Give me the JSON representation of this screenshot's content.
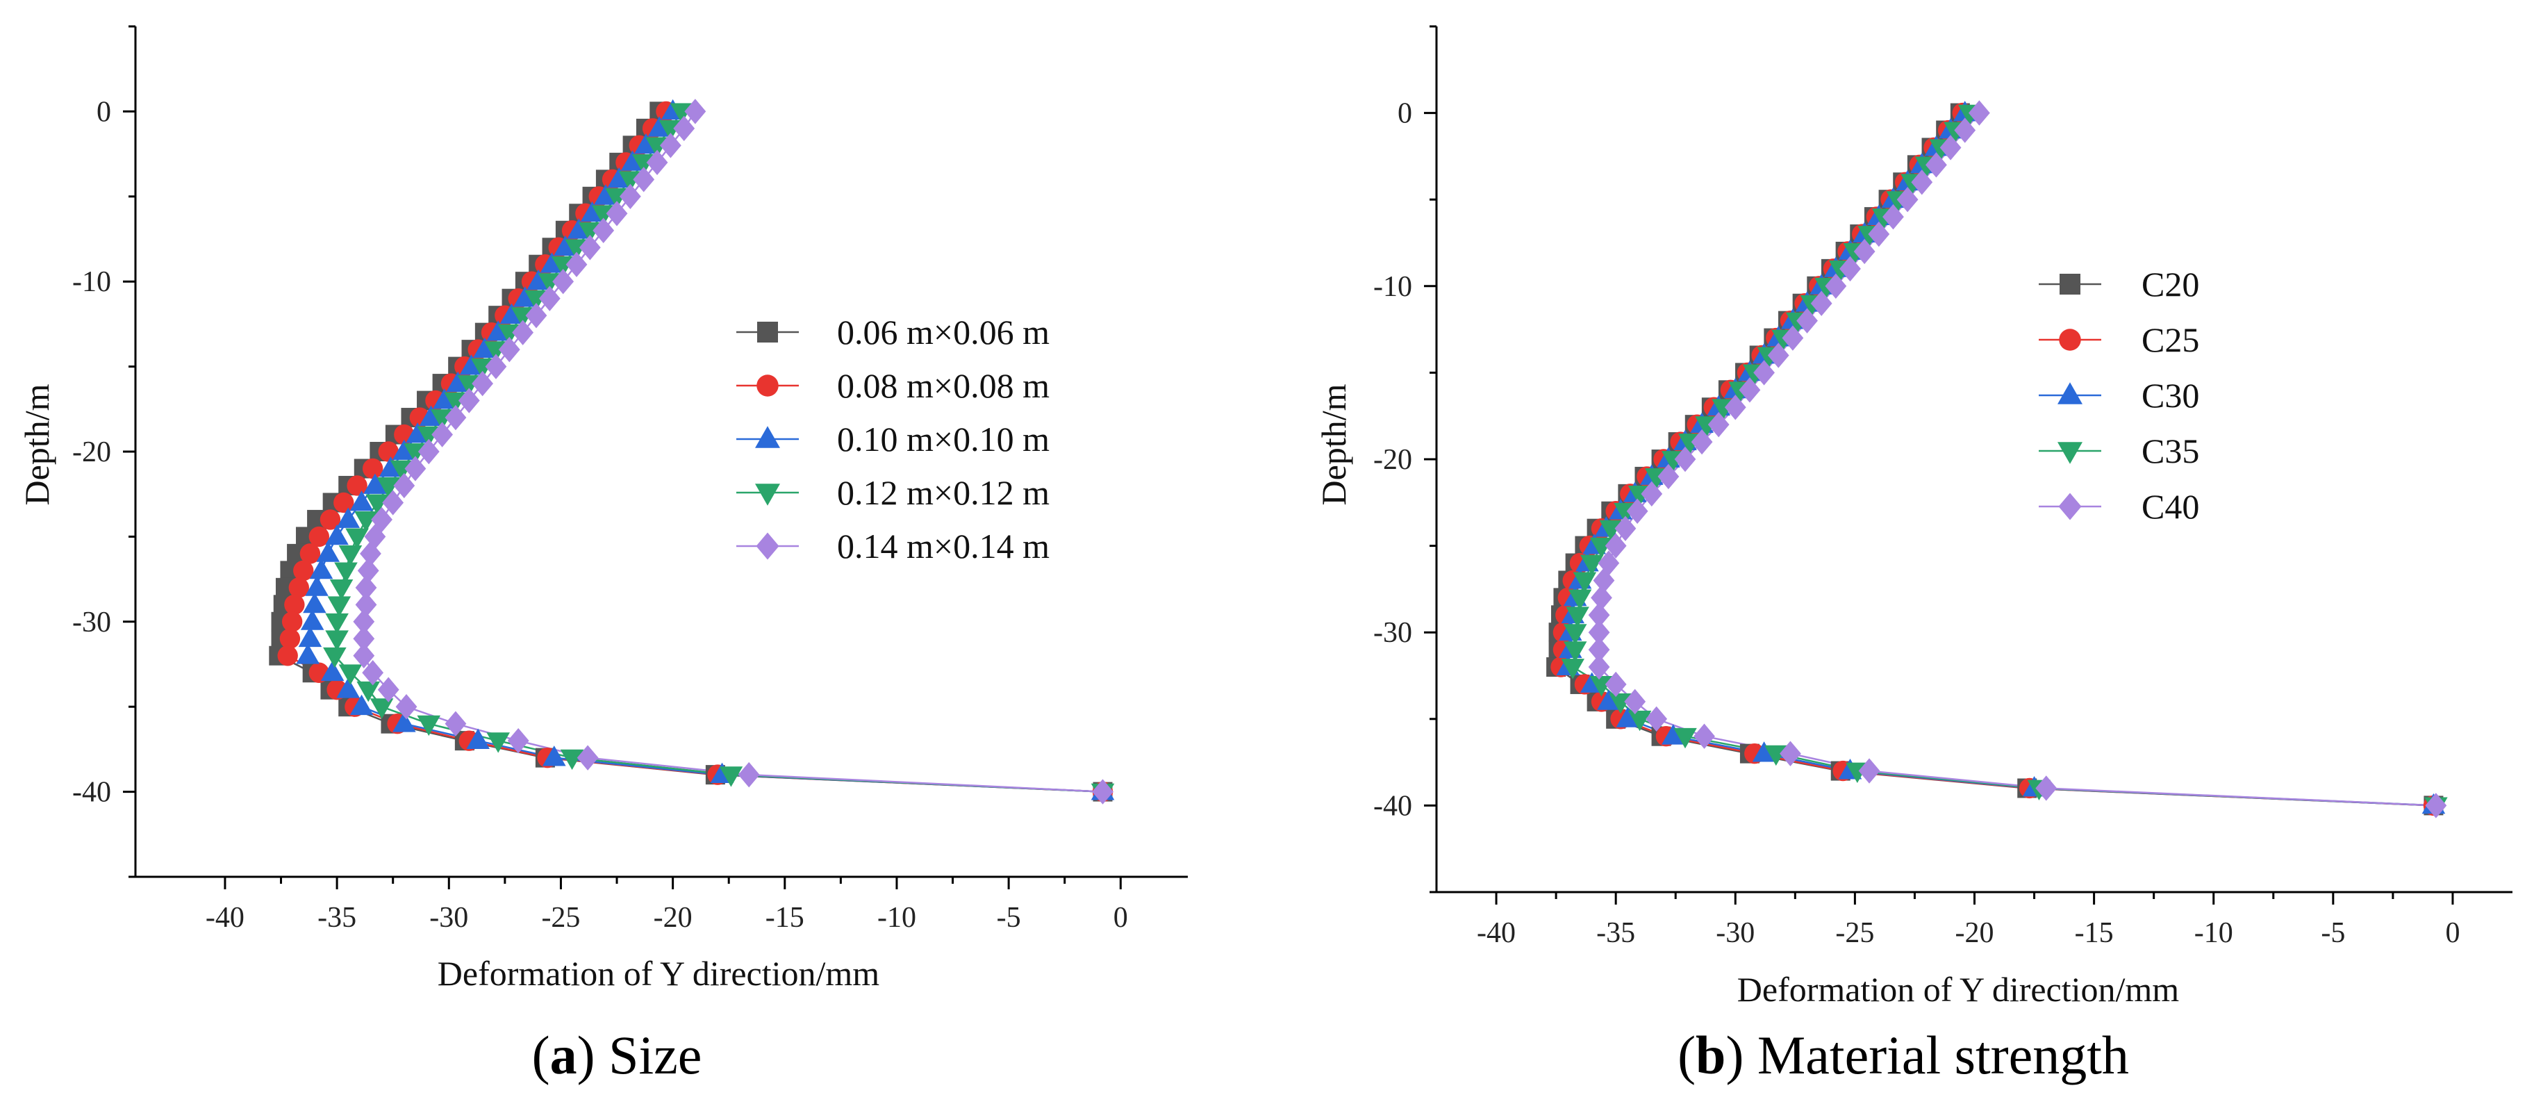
{
  "figure": {
    "panels": [
      {
        "caption_letter": "a",
        "caption_text": "Size"
      },
      {
        "caption_letter": "b",
        "caption_text": "Material strength"
      }
    ]
  },
  "chart_data": [
    {
      "type": "line",
      "xlabel": "Deformation of Y direction/mm",
      "ylabel": "Depth/m",
      "xlim": [
        -44,
        3
      ],
      "ylim": [
        -45,
        5
      ],
      "xticks": [
        -40,
        -35,
        -30,
        -25,
        -20,
        -15,
        -10,
        -5,
        0
      ],
      "yticks": [
        0,
        -10,
        -20,
        -30,
        -40
      ],
      "grid": false,
      "legend_position": "right",
      "depth": [
        0,
        -1,
        -2,
        -3,
        -4,
        -5,
        -6,
        -7,
        -8,
        -9,
        -10,
        -11,
        -12,
        -13,
        -14,
        -15,
        -16,
        -17,
        -18,
        -19,
        -20,
        -21,
        -22,
        -23,
        -24,
        -25,
        -26,
        -27,
        -28,
        -29,
        -30,
        -31,
        -32,
        -33,
        -34,
        -35,
        -36,
        -37,
        -38,
        -39,
        -40
      ],
      "series": [
        {
          "name": "0.06 m×0.06 m",
          "color": "#555555",
          "marker": "square",
          "values": [
            -20.6,
            -21.2,
            -21.8,
            -22.4,
            -23.0,
            -23.6,
            -24.2,
            -24.8,
            -25.4,
            -26.0,
            -26.6,
            -27.2,
            -27.8,
            -28.4,
            -29.0,
            -29.6,
            -30.3,
            -31.0,
            -31.7,
            -32.4,
            -33.1,
            -33.8,
            -34.5,
            -35.2,
            -35.9,
            -36.4,
            -36.8,
            -37.1,
            -37.3,
            -37.4,
            -37.5,
            -37.5,
            -37.6,
            -36.1,
            -35.3,
            -34.5,
            -32.6,
            -29.3,
            -25.7,
            -18.1,
            -0.8
          ]
        },
        {
          "name": "0.08 m×0.08 m",
          "color": "#e8342f",
          "marker": "circle",
          "values": [
            -20.3,
            -20.9,
            -21.5,
            -22.1,
            -22.7,
            -23.3,
            -23.9,
            -24.5,
            -25.1,
            -25.7,
            -26.3,
            -26.9,
            -27.5,
            -28.1,
            -28.7,
            -29.3,
            -29.9,
            -30.6,
            -31.3,
            -32.0,
            -32.7,
            -33.4,
            -34.1,
            -34.7,
            -35.3,
            -35.8,
            -36.2,
            -36.5,
            -36.7,
            -36.9,
            -37.0,
            -37.1,
            -37.2,
            -35.8,
            -35.0,
            -34.2,
            -32.3,
            -29.1,
            -25.6,
            -18.0,
            -0.8
          ]
        },
        {
          "name": "0.10 m×0.10 m",
          "color": "#2a6ad9",
          "marker": "triangle-up",
          "values": [
            -20.0,
            -20.6,
            -21.2,
            -21.8,
            -22.4,
            -23.0,
            -23.6,
            -24.2,
            -24.8,
            -25.4,
            -26.0,
            -26.6,
            -27.2,
            -27.8,
            -28.4,
            -29.0,
            -29.6,
            -30.2,
            -30.8,
            -31.4,
            -32.0,
            -32.6,
            -33.3,
            -33.9,
            -34.5,
            -35.0,
            -35.4,
            -35.7,
            -35.9,
            -36.0,
            -36.1,
            -36.2,
            -36.3,
            -35.2,
            -34.5,
            -33.9,
            -32.0,
            -28.7,
            -25.3,
            -17.8,
            -0.8
          ]
        },
        {
          "name": "0.12 m×0.12 m",
          "color": "#2aa56a",
          "marker": "triangle-down",
          "values": [
            -19.6,
            -20.1,
            -20.7,
            -21.3,
            -21.9,
            -22.5,
            -23.1,
            -23.7,
            -24.3,
            -24.9,
            -25.5,
            -26.1,
            -26.7,
            -27.3,
            -27.9,
            -28.5,
            -29.1,
            -29.7,
            -30.3,
            -30.9,
            -31.5,
            -32.1,
            -32.7,
            -33.2,
            -33.7,
            -34.1,
            -34.4,
            -34.6,
            -34.8,
            -34.9,
            -35.0,
            -35.0,
            -35.1,
            -34.4,
            -33.6,
            -33.0,
            -30.9,
            -27.8,
            -24.5,
            -17.4,
            -0.8
          ]
        },
        {
          "name": "0.14 m×0.14 m",
          "color": "#a884e0",
          "marker": "diamond",
          "values": [
            -19.0,
            -19.5,
            -20.1,
            -20.7,
            -21.3,
            -21.9,
            -22.5,
            -23.1,
            -23.7,
            -24.3,
            -24.9,
            -25.5,
            -26.1,
            -26.7,
            -27.3,
            -27.9,
            -28.5,
            -29.1,
            -29.7,
            -30.3,
            -30.9,
            -31.5,
            -32.0,
            -32.5,
            -33.0,
            -33.3,
            -33.5,
            -33.6,
            -33.7,
            -33.7,
            -33.8,
            -33.8,
            -33.8,
            -33.4,
            -32.7,
            -31.9,
            -29.7,
            -26.9,
            -23.8,
            -16.6,
            -0.8
          ]
        }
      ]
    },
    {
      "type": "line",
      "xlabel": "Deformation of Y direction/mm",
      "ylabel": "Depth/m",
      "xlim": [
        -42.5,
        2.5
      ],
      "ylim": [
        -45,
        5
      ],
      "xticks": [
        -40,
        -35,
        -30,
        -25,
        -20,
        -15,
        -10,
        -5,
        0
      ],
      "yticks": [
        0,
        -10,
        -20,
        -30,
        -40
      ],
      "grid": false,
      "legend_position": "top-right",
      "depth": [
        0,
        -1,
        -2,
        -3,
        -4,
        -5,
        -6,
        -7,
        -8,
        -9,
        -10,
        -11,
        -12,
        -13,
        -14,
        -15,
        -16,
        -17,
        -18,
        -19,
        -20,
        -21,
        -22,
        -23,
        -24,
        -25,
        -26,
        -27,
        -28,
        -29,
        -30,
        -31,
        -32,
        -33,
        -34,
        -35,
        -36,
        -37,
        -38,
        -39,
        -40
      ],
      "series": [
        {
          "name": "C20",
          "color": "#555555",
          "marker": "square",
          "values": [
            -20.6,
            -21.2,
            -21.8,
            -22.4,
            -23.0,
            -23.6,
            -24.2,
            -24.8,
            -25.4,
            -26.0,
            -26.6,
            -27.2,
            -27.8,
            -28.4,
            -29.0,
            -29.6,
            -30.3,
            -31.0,
            -31.7,
            -32.4,
            -33.1,
            -33.8,
            -34.5,
            -35.2,
            -35.8,
            -36.3,
            -36.7,
            -37.0,
            -37.2,
            -37.3,
            -37.4,
            -37.4,
            -37.5,
            -36.5,
            -35.8,
            -35.0,
            -33.1,
            -29.4,
            -25.6,
            -17.8,
            -0.8
          ]
        },
        {
          "name": "C25",
          "color": "#e8342f",
          "marker": "circle",
          "values": [
            -20.5,
            -21.1,
            -21.7,
            -22.3,
            -22.9,
            -23.5,
            -24.1,
            -24.7,
            -25.3,
            -25.9,
            -26.5,
            -27.1,
            -27.7,
            -28.3,
            -28.9,
            -29.5,
            -30.2,
            -30.9,
            -31.6,
            -32.3,
            -33.0,
            -33.7,
            -34.4,
            -35.0,
            -35.6,
            -36.1,
            -36.5,
            -36.8,
            -37.0,
            -37.1,
            -37.2,
            -37.2,
            -37.3,
            -36.3,
            -35.6,
            -34.8,
            -32.9,
            -29.2,
            -25.5,
            -17.7,
            -0.8
          ]
        },
        {
          "name": "C30",
          "color": "#2a6ad9",
          "marker": "triangle-up",
          "values": [
            -20.4,
            -21.0,
            -21.6,
            -22.2,
            -22.8,
            -23.4,
            -24.0,
            -24.6,
            -25.2,
            -25.8,
            -26.4,
            -27.0,
            -27.6,
            -28.2,
            -28.8,
            -29.4,
            -30.0,
            -30.7,
            -31.4,
            -32.1,
            -32.8,
            -33.5,
            -34.2,
            -34.8,
            -35.4,
            -35.9,
            -36.2,
            -36.5,
            -36.7,
            -36.8,
            -36.9,
            -36.9,
            -37.0,
            -36.0,
            -35.3,
            -34.5,
            -32.6,
            -28.8,
            -25.2,
            -17.5,
            -0.8
          ]
        },
        {
          "name": "C35",
          "color": "#2aa56a",
          "marker": "triangle-down",
          "values": [
            -20.2,
            -20.8,
            -21.4,
            -22.0,
            -22.6,
            -23.2,
            -23.8,
            -24.4,
            -25.0,
            -25.6,
            -26.2,
            -26.8,
            -27.4,
            -28.0,
            -28.6,
            -29.2,
            -29.8,
            -30.5,
            -31.2,
            -31.9,
            -32.6,
            -33.3,
            -34.0,
            -34.6,
            -35.2,
            -35.6,
            -36.0,
            -36.3,
            -36.5,
            -36.6,
            -36.7,
            -36.7,
            -36.8,
            -35.6,
            -34.8,
            -34.0,
            -32.1,
            -28.3,
            -24.9,
            -17.3,
            -0.7
          ]
        },
        {
          "name": "C40",
          "color": "#a884e0",
          "marker": "diamond",
          "values": [
            -19.8,
            -20.4,
            -21.0,
            -21.6,
            -22.2,
            -22.8,
            -23.4,
            -24.0,
            -24.6,
            -25.2,
            -25.8,
            -26.4,
            -27.0,
            -27.6,
            -28.2,
            -28.8,
            -29.4,
            -30.0,
            -30.7,
            -31.4,
            -32.1,
            -32.8,
            -33.5,
            -34.1,
            -34.6,
            -35.0,
            -35.3,
            -35.5,
            -35.6,
            -35.7,
            -35.7,
            -35.7,
            -35.7,
            -35.0,
            -34.2,
            -33.3,
            -31.3,
            -27.7,
            -24.4,
            -17.0,
            -0.7
          ]
        }
      ]
    }
  ]
}
